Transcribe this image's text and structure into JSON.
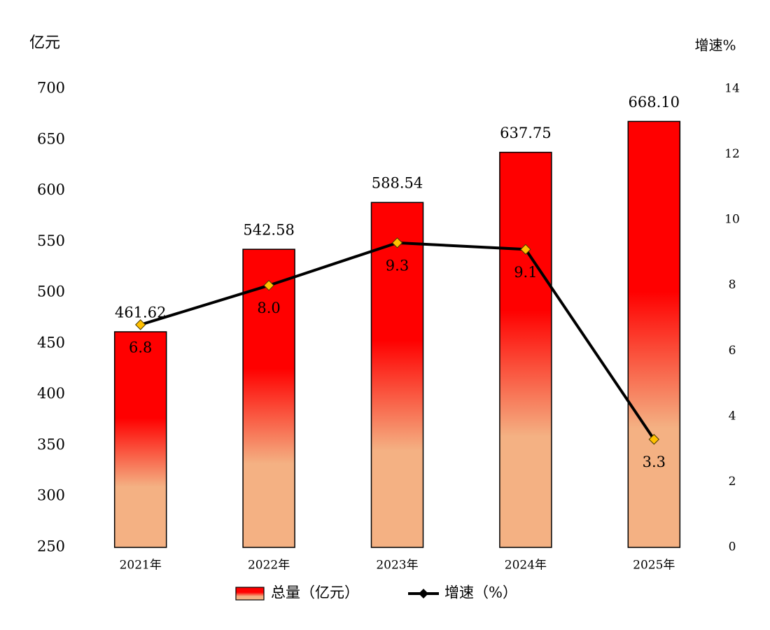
{
  "chart_data": {
    "type": "bar",
    "y_axis_title": "亿元",
    "y2_axis_title": "增速%",
    "categories": [
      "2021年",
      "2022年",
      "2023年",
      "2024年",
      "2025年"
    ],
    "series": [
      {
        "name": "总量（亿元）",
        "type": "bar",
        "gradient": [
          "#ff0000",
          "#f4b183"
        ],
        "color": "#ff0000",
        "values": [
          461.62,
          542.58,
          588.54,
          637.75,
          668.1
        ],
        "value_labels": [
          "461.62",
          "542.58",
          "588.54",
          "637.75",
          "668.10"
        ]
      },
      {
        "name": "增速（%）",
        "type": "line",
        "axis": "y2",
        "color": "#000000",
        "marker_color": "#ffc000",
        "values": [
          6.8,
          8.0,
          9.3,
          9.1,
          3.3
        ],
        "value_labels": [
          "6.8",
          "8.0",
          "9.3",
          "9.1",
          "3.3"
        ]
      }
    ],
    "ylim": [
      250,
      700
    ],
    "yticks": [
      250,
      300,
      350,
      400,
      450,
      500,
      550,
      600,
      650,
      700
    ],
    "y2lim": [
      0,
      14
    ],
    "y2ticks": [
      0,
      2,
      4,
      6,
      8,
      10,
      12,
      14
    ],
    "grid": false,
    "legend": "bottom"
  }
}
